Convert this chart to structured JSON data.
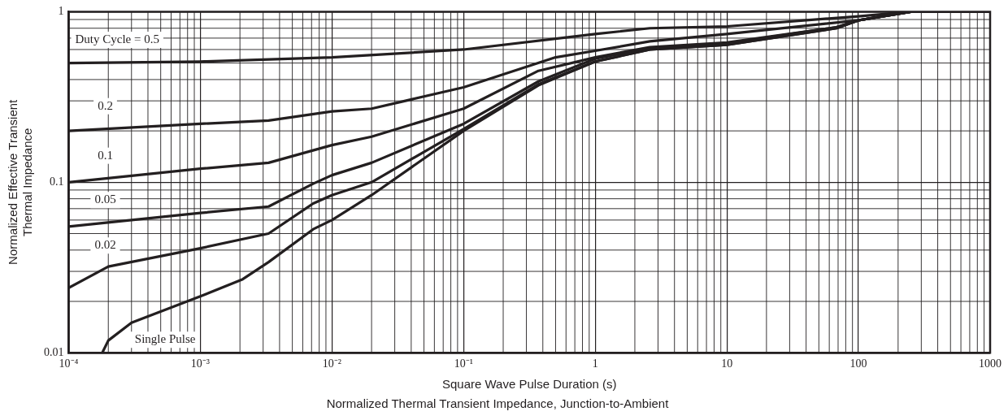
{
  "chart_data": {
    "type": "line",
    "title": "Normalized Thermal Transient Impedance, Junction-to-Ambient",
    "xlabel": "Square Wave Pulse Duration (s)",
    "ylabel": "Normalized Effective Transient Thermal Impedance",
    "log": "xy",
    "grid": true,
    "legend": false,
    "marker": "none",
    "line_style": "solid",
    "xlim": [
      0.0001,
      1000
    ],
    "ylim": [
      0.01,
      1
    ],
    "xticks": [
      {
        "value": 0.0001,
        "label": "10⁻⁴"
      },
      {
        "value": 0.001,
        "label": "10⁻³"
      },
      {
        "value": 0.01,
        "label": "10⁻²"
      },
      {
        "value": 0.1,
        "label": "10⁻¹"
      },
      1,
      10,
      100,
      1000
    ],
    "yticks": [
      0.01,
      0.1,
      1
    ],
    "series": [
      {
        "name": "Duty Cycle = 0.5",
        "color": "#231f20",
        "x": [
          0.0001,
          0.001,
          0.01,
          0.1,
          1,
          2.6,
          10,
          100,
          250,
          1000
        ],
        "values": [
          0.5,
          0.51,
          0.54,
          0.6,
          0.74,
          0.8,
          0.82,
          0.94,
          1,
          1
        ]
      },
      {
        "name": "0.2",
        "color": "#231f20",
        "x": [
          0.0001,
          0.001,
          0.0033,
          0.01,
          0.02,
          0.1,
          0.5,
          1,
          2.6,
          10,
          100,
          250,
          1000
        ],
        "values": [
          0.2,
          0.22,
          0.23,
          0.26,
          0.27,
          0.36,
          0.54,
          0.59,
          0.67,
          0.74,
          0.89,
          1,
          1
        ]
      },
      {
        "name": "0.1",
        "color": "#231f20",
        "x": [
          0.0001,
          0.001,
          0.0033,
          0.01,
          0.02,
          0.1,
          0.37,
          1,
          2.6,
          10,
          68,
          100,
          250,
          1000
        ],
        "values": [
          0.1,
          0.12,
          0.13,
          0.165,
          0.185,
          0.27,
          0.45,
          0.54,
          0.62,
          0.66,
          0.81,
          0.89,
          1,
          1
        ]
      },
      {
        "name": "0.05",
        "color": "#231f20",
        "x": [
          0.0001,
          0.001,
          0.0033,
          0.0072,
          0.01,
          0.02,
          0.1,
          0.37,
          1,
          2.6,
          10,
          68,
          100,
          250,
          1000
        ],
        "values": [
          0.055,
          0.066,
          0.072,
          0.098,
          0.11,
          0.13,
          0.22,
          0.39,
          0.53,
          0.61,
          0.65,
          0.81,
          0.89,
          1,
          1
        ]
      },
      {
        "name": "0.02",
        "color": "#231f20",
        "x": [
          0.0001,
          0.0002,
          0.001,
          0.0033,
          0.0072,
          0.01,
          0.02,
          0.1,
          0.37,
          1,
          2.6,
          10,
          68,
          100,
          250,
          1000
        ],
        "values": [
          0.024,
          0.032,
          0.041,
          0.05,
          0.075,
          0.084,
          0.1,
          0.205,
          0.375,
          0.51,
          0.6,
          0.64,
          0.8,
          0.89,
          1,
          1
        ]
      },
      {
        "name": "Single Pulse",
        "color": "#231f20",
        "x": [
          0.00018,
          0.0002,
          0.0003,
          0.001,
          0.0021,
          0.0033,
          0.0072,
          0.01,
          0.02,
          0.1,
          0.37,
          1,
          2.6,
          10,
          68,
          100,
          250,
          1000
        ],
        "values": [
          0.01,
          0.0118,
          0.015,
          0.0214,
          0.027,
          0.034,
          0.053,
          0.06,
          0.084,
          0.2,
          0.37,
          0.51,
          0.6,
          0.64,
          0.8,
          0.89,
          1,
          1
        ]
      }
    ]
  }
}
